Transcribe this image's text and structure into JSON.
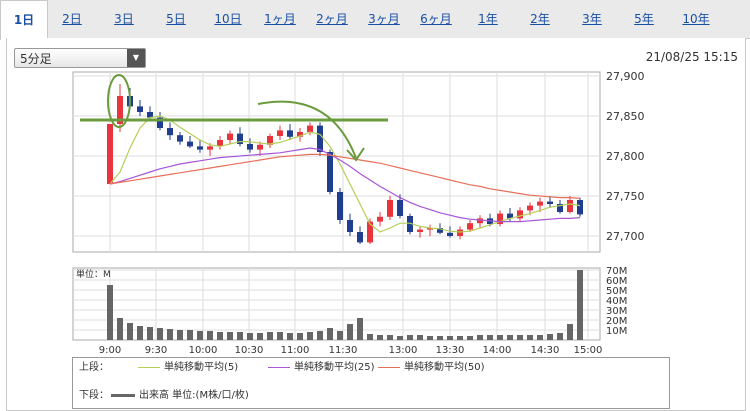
{
  "tabs": [
    {
      "label": "1日",
      "active": true
    },
    {
      "label": "2日"
    },
    {
      "label": "3日"
    },
    {
      "label": "5日"
    },
    {
      "label": "10日"
    },
    {
      "label": "1ヶ月"
    },
    {
      "label": "2ヶ月"
    },
    {
      "label": "3ヶ月"
    },
    {
      "label": "6ヶ月"
    },
    {
      "label": "1年"
    },
    {
      "label": "2年"
    },
    {
      "label": "3年"
    },
    {
      "label": "5年"
    },
    {
      "label": "10年"
    }
  ],
  "interval_select": {
    "value": "5分足"
  },
  "datetime": "21/08/25 15:15",
  "colors": {
    "up": "#e8343d",
    "down": "#1f3e8f",
    "ma5": "#b5cf58",
    "ma25": "#a855d8",
    "ma50": "#e8705a",
    "volume": "#666666",
    "annotation": "#6a9b3c"
  },
  "chart_data": [
    {
      "type": "candlestick",
      "ylim": [
        27680,
        27905
      ],
      "yticks": [
        "27,900",
        "27,850",
        "27,800",
        "27,750",
        "27,700"
      ],
      "ytick_values": [
        27900,
        27850,
        27800,
        27750,
        27700
      ],
      "xticks": [
        "9:00",
        "9:30",
        "10:00",
        "10:30",
        "11:00",
        "11:30",
        "13:00",
        "13:30",
        "14:00",
        "14:30",
        "15:00"
      ],
      "candles": [
        [
          27765,
          27840,
          27765,
          27840
        ],
        [
          27840,
          27890,
          27830,
          27875
        ],
        [
          27875,
          27885,
          27858,
          27862
        ],
        [
          27862,
          27870,
          27850,
          27855
        ],
        [
          27855,
          27862,
          27845,
          27848
        ],
        [
          27848,
          27855,
          27832,
          27835
        ],
        [
          27835,
          27842,
          27820,
          27826
        ],
        [
          27826,
          27830,
          27814,
          27818
        ],
        [
          27818,
          27825,
          27810,
          27812
        ],
        [
          27812,
          27820,
          27804,
          27808
        ],
        [
          27808,
          27816,
          27800,
          27812
        ],
        [
          27812,
          27825,
          27808,
          27820
        ],
        [
          27820,
          27832,
          27815,
          27828
        ],
        [
          27828,
          27836,
          27812,
          27815
        ],
        [
          27815,
          27822,
          27804,
          27808
        ],
        [
          27808,
          27818,
          27800,
          27814
        ],
        [
          27814,
          27828,
          27810,
          27825
        ],
        [
          27825,
          27838,
          27820,
          27832
        ],
        [
          27832,
          27840,
          27820,
          27824
        ],
        [
          27824,
          27835,
          27818,
          27830
        ],
        [
          27830,
          27842,
          27826,
          27838
        ],
        [
          27838,
          27842,
          27800,
          27805
        ],
        [
          27805,
          27808,
          27752,
          27755
        ],
        [
          27755,
          27760,
          27715,
          27720
        ],
        [
          27720,
          27728,
          27700,
          27705
        ],
        [
          27705,
          27712,
          27690,
          27692
        ],
        [
          27692,
          27722,
          27690,
          27718
        ],
        [
          27718,
          27730,
          27712,
          27724
        ],
        [
          27724,
          27750,
          27720,
          27745
        ],
        [
          27745,
          27752,
          27722,
          27725
        ],
        [
          27725,
          27728,
          27702,
          27705
        ],
        [
          27705,
          27712,
          27698,
          27708
        ],
        [
          27708,
          27714,
          27700,
          27710
        ],
        [
          27710,
          27716,
          27702,
          27704
        ],
        [
          27704,
          27712,
          27698,
          27700
        ],
        [
          27700,
          27712,
          27696,
          27708
        ],
        [
          27708,
          27720,
          27705,
          27716
        ],
        [
          27716,
          27726,
          27710,
          27722
        ],
        [
          27722,
          27728,
          27712,
          27715
        ],
        [
          27715,
          27732,
          27712,
          27728
        ],
        [
          27728,
          27735,
          27718,
          27722
        ],
        [
          27722,
          27736,
          27718,
          27732
        ],
        [
          27732,
          27742,
          27726,
          27738
        ],
        [
          27738,
          27748,
          27730,
          27743
        ],
        [
          27743,
          27750,
          27735,
          27740
        ],
        [
          27740,
          27745,
          27728,
          27730
        ],
        [
          27730,
          27750,
          27728,
          27745
        ],
        [
          27745,
          27748,
          27724,
          27727
        ]
      ],
      "series": [
        {
          "name": "単純移動平均(5)",
          "values": [
            27765,
            27780,
            27810,
            27835,
            27848,
            27850,
            27845,
            27836,
            27828,
            27820,
            27814,
            27812,
            27815,
            27818,
            27818,
            27816,
            27815,
            27817,
            27821,
            27825,
            27830,
            27827,
            27812,
            27790,
            27765,
            27740,
            27715,
            27705,
            27710,
            27716,
            27716,
            27712,
            27710,
            27709,
            27706,
            27705,
            27706,
            27710,
            27714,
            27718,
            27722,
            27725,
            27728,
            27732,
            27736,
            27738,
            27740,
            27738
          ]
        },
        {
          "name": "単純移動平均(25)",
          "values": [
            27765,
            27768,
            27772,
            27776,
            27780,
            27784,
            27787,
            27790,
            27792,
            27794,
            27796,
            27798,
            27799,
            27800,
            27801,
            27802,
            27803,
            27804,
            27806,
            27808,
            27810,
            27808,
            27802,
            27795,
            27787,
            27778,
            27770,
            27762,
            27755,
            27748,
            27742,
            27737,
            27733,
            27729,
            27726,
            27723,
            27721,
            27720,
            27719,
            27718,
            27718,
            27718,
            27719,
            27720,
            27721,
            27722,
            27722,
            27723
          ]
        },
        {
          "name": "単純移動平均(50)",
          "values": [
            27765,
            27767,
            27769,
            27771,
            27773,
            27775,
            27777,
            27779,
            27781,
            27783,
            27785,
            27787,
            27789,
            27791,
            27793,
            27795,
            27797,
            27799,
            27800,
            27801,
            27802,
            27802,
            27801,
            27799,
            27797,
            27795,
            27793,
            27791,
            27788,
            27785,
            27782,
            27779,
            27776,
            27773,
            27770,
            27767,
            27764,
            27762,
            27759,
            27757,
            27755,
            27753,
            27751,
            27750,
            27749,
            27748,
            27748,
            27747
          ]
        }
      ]
    },
    {
      "type": "bar",
      "title": "単位：M",
      "ylim": [
        0,
        70
      ],
      "yticks": [
        "70M",
        "60M",
        "50M",
        "40M",
        "30M",
        "20M",
        "10M"
      ],
      "ytick_values": [
        70,
        60,
        50,
        40,
        30,
        20,
        10
      ],
      "values": [
        55,
        22,
        17,
        14,
        13,
        12,
        11,
        10,
        10,
        9,
        9,
        8,
        8,
        8,
        7,
        7,
        8,
        8,
        7,
        7,
        8,
        9,
        12,
        9,
        16,
        22,
        6,
        5,
        5,
        4,
        5,
        5,
        4,
        4,
        4,
        4,
        4,
        5,
        5,
        5,
        5,
        5,
        5,
        5,
        6,
        7,
        16,
        70
      ]
    }
  ],
  "legend": {
    "upper_label": "上段：",
    "lower_label": "下段：",
    "ma5": "単純移動平均(5)",
    "ma25": "単純移動平均(25)",
    "ma50": "単純移動平均(50)",
    "volume": "出来高 単位:(M株/口/枚)"
  }
}
